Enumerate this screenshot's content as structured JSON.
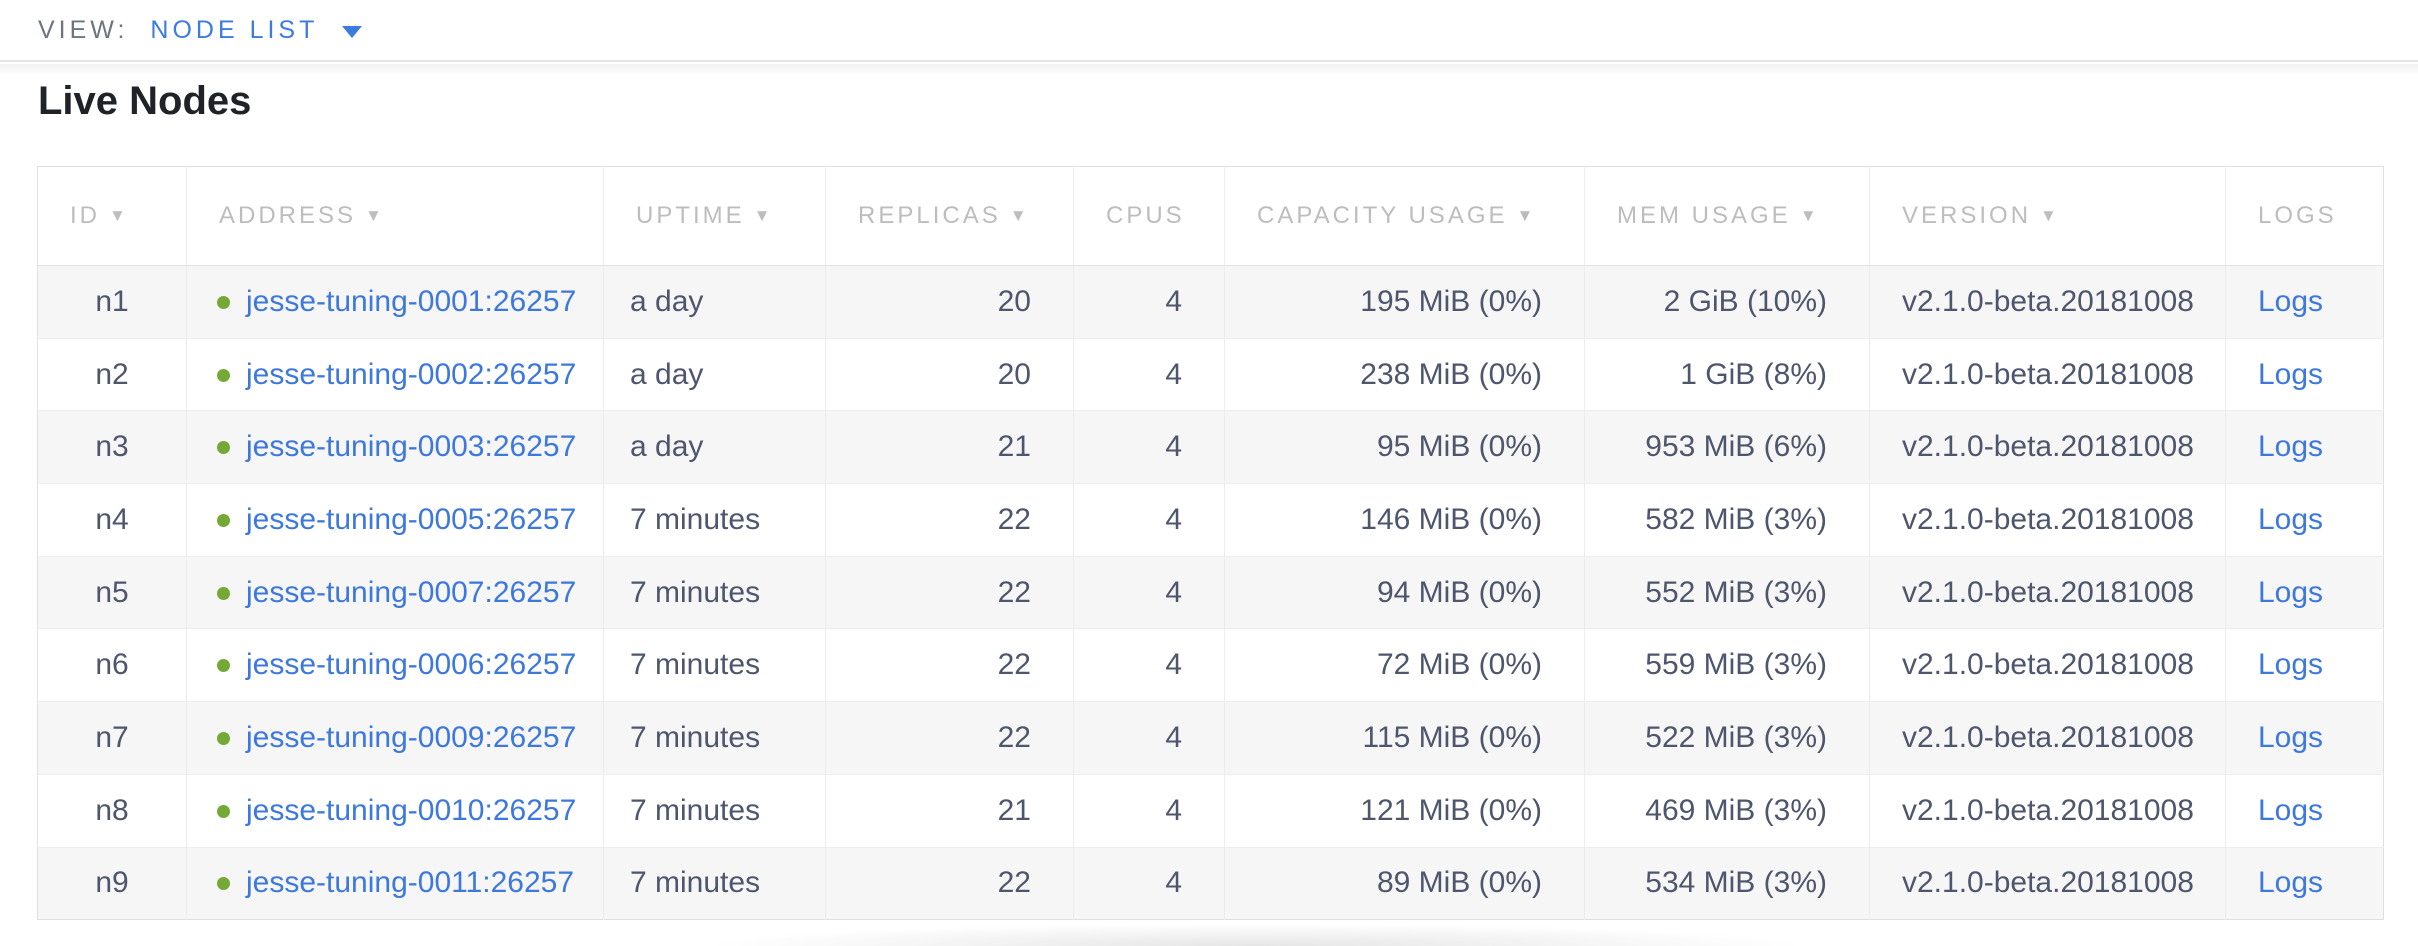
{
  "view_bar": {
    "label": "VIEW:",
    "selected_view": "NODE LIST"
  },
  "page_title": "Live Nodes",
  "colors": {
    "link_blue": "#3d78dd",
    "live_dot_green": "#74a936",
    "header_gray": "#bdbdbd",
    "body_text": "#4d566c",
    "row_stripe": "#f6f6f6"
  },
  "icons": {
    "view_caret": "caret-down-icon",
    "sort_indicator": "▼",
    "live_status": "live-status-dot"
  },
  "table": {
    "columns": [
      {
        "key": "id",
        "label": "ID",
        "sorted": true
      },
      {
        "key": "address",
        "label": "ADDRESS",
        "sorted": true
      },
      {
        "key": "uptime",
        "label": "UPTIME",
        "sorted": true
      },
      {
        "key": "replicas",
        "label": "REPLICAS",
        "sorted": true
      },
      {
        "key": "cpus",
        "label": "CPUS",
        "sorted": false
      },
      {
        "key": "capacity",
        "label": "CAPACITY USAGE",
        "sorted": true
      },
      {
        "key": "mem",
        "label": "MEM USAGE",
        "sorted": true
      },
      {
        "key": "version",
        "label": "VERSION",
        "sorted": true
      },
      {
        "key": "logs",
        "label": "LOGS",
        "sorted": false
      }
    ],
    "rows": [
      {
        "id": "n1",
        "address": "jesse-tuning-0001:26257",
        "uptime": "a day",
        "replicas": "20",
        "cpus": "4",
        "capacity": "195 MiB (0%)",
        "mem": "2 GiB (10%)",
        "version": "v2.1.0-beta.20181008",
        "logs": "Logs"
      },
      {
        "id": "n2",
        "address": "jesse-tuning-0002:26257",
        "uptime": "a day",
        "replicas": "20",
        "cpus": "4",
        "capacity": "238 MiB (0%)",
        "mem": "1 GiB (8%)",
        "version": "v2.1.0-beta.20181008",
        "logs": "Logs"
      },
      {
        "id": "n3",
        "address": "jesse-tuning-0003:26257",
        "uptime": "a day",
        "replicas": "21",
        "cpus": "4",
        "capacity": "95 MiB (0%)",
        "mem": "953 MiB (6%)",
        "version": "v2.1.0-beta.20181008",
        "logs": "Logs"
      },
      {
        "id": "n4",
        "address": "jesse-tuning-0005:26257",
        "uptime": "7 minutes",
        "replicas": "22",
        "cpus": "4",
        "capacity": "146 MiB (0%)",
        "mem": "582 MiB (3%)",
        "version": "v2.1.0-beta.20181008",
        "logs": "Logs"
      },
      {
        "id": "n5",
        "address": "jesse-tuning-0007:26257",
        "uptime": "7 minutes",
        "replicas": "22",
        "cpus": "4",
        "capacity": "94 MiB (0%)",
        "mem": "552 MiB (3%)",
        "version": "v2.1.0-beta.20181008",
        "logs": "Logs"
      },
      {
        "id": "n6",
        "address": "jesse-tuning-0006:26257",
        "uptime": "7 minutes",
        "replicas": "22",
        "cpus": "4",
        "capacity": "72 MiB (0%)",
        "mem": "559 MiB (3%)",
        "version": "v2.1.0-beta.20181008",
        "logs": "Logs"
      },
      {
        "id": "n7",
        "address": "jesse-tuning-0009:26257",
        "uptime": "7 minutes",
        "replicas": "22",
        "cpus": "4",
        "capacity": "115 MiB (0%)",
        "mem": "522 MiB (3%)",
        "version": "v2.1.0-beta.20181008",
        "logs": "Logs"
      },
      {
        "id": "n8",
        "address": "jesse-tuning-0010:26257",
        "uptime": "7 minutes",
        "replicas": "21",
        "cpus": "4",
        "capacity": "121 MiB (0%)",
        "mem": "469 MiB (3%)",
        "version": "v2.1.0-beta.20181008",
        "logs": "Logs"
      },
      {
        "id": "n9",
        "address": "jesse-tuning-0011:26257",
        "uptime": "7 minutes",
        "replicas": "22",
        "cpus": "4",
        "capacity": "89 MiB (0%)",
        "mem": "534 MiB (3%)",
        "version": "v2.1.0-beta.20181008",
        "logs": "Logs"
      }
    ]
  }
}
